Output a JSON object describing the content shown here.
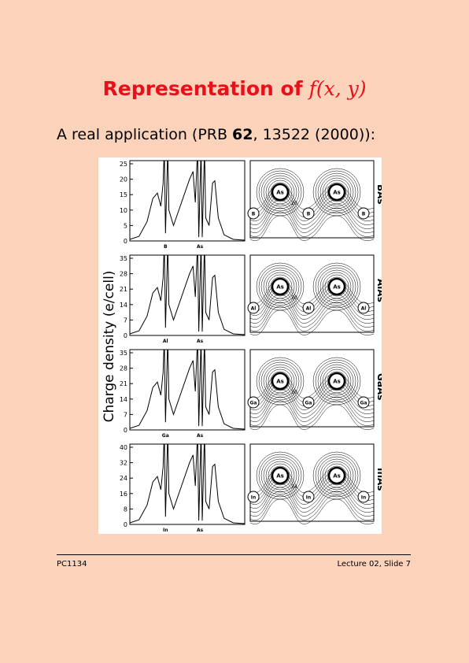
{
  "title": {
    "text": "Representation of",
    "math": "f(x, y)"
  },
  "intro": {
    "before": "A real application (PRB",
    "bold": "62",
    "after": ", 13522 (2000)):"
  },
  "figure": {
    "y_label": "Charge density (e/cell)",
    "panels": [
      {
        "compound": "BAs",
        "yticks": [
          0,
          5,
          10,
          15,
          20,
          25
        ],
        "x_labels": [
          "B",
          "As"
        ],
        "contour_labels": [
          "As",
          "As",
          "B",
          "B",
          "B",
          "20"
        ]
      },
      {
        "compound": "AlAs",
        "yticks": [
          0,
          7,
          14,
          21,
          28,
          35
        ],
        "x_labels": [
          "Al",
          "As"
        ],
        "contour_labels": [
          "As",
          "As",
          "Al",
          "Al",
          "Al",
          "30"
        ]
      },
      {
        "compound": "GaAs",
        "yticks": [
          0,
          7,
          14,
          21,
          28,
          35
        ],
        "x_labels": [
          "Ga",
          "As"
        ],
        "contour_labels": [
          "As",
          "As",
          "Ga",
          "Ga",
          "Ga",
          "30"
        ]
      },
      {
        "compound": "InAs",
        "yticks": [
          0,
          8,
          16,
          24,
          32,
          40
        ],
        "x_labels": [
          "In",
          "As"
        ],
        "contour_labels": [
          "As",
          "As",
          "In",
          "In",
          "In",
          "34"
        ]
      }
    ]
  },
  "footer": {
    "left": "PC1134",
    "right": "Lecture 02, Slide 7"
  }
}
